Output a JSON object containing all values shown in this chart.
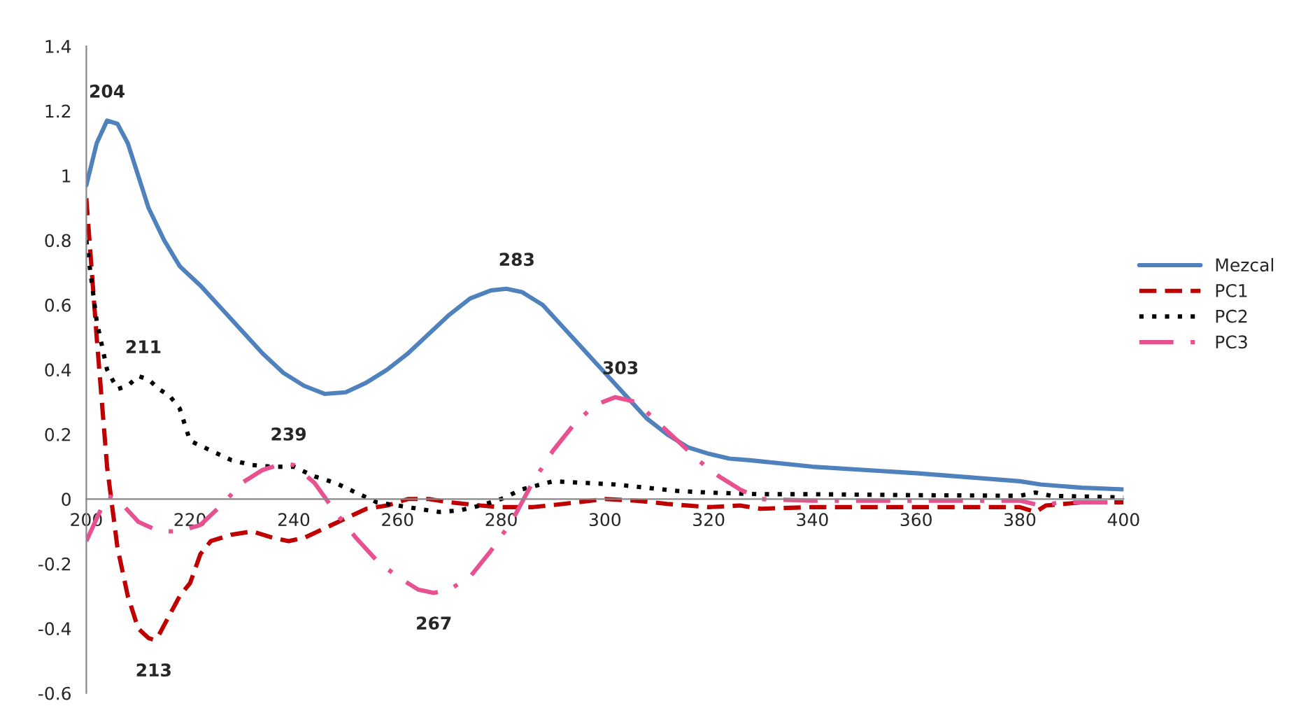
{
  "chart_data": {
    "type": "line",
    "xlim": [
      200,
      400
    ],
    "xticks": [
      200,
      220,
      240,
      260,
      280,
      300,
      320,
      340,
      360,
      380,
      400
    ],
    "ylim": [
      -0.6,
      1.4
    ],
    "yticks": [
      -0.6,
      -0.4,
      -0.2,
      0,
      0.2,
      0.4,
      0.6,
      0.8,
      1,
      1.2,
      1.4
    ],
    "grid": false,
    "legend": "right",
    "series": [
      {
        "name": "Mezcal",
        "color": "#4f81bd",
        "line_style": "solid",
        "x": [
          200,
          202,
          204,
          206,
          208,
          210,
          212,
          215,
          218,
          222,
          226,
          230,
          234,
          238,
          242,
          246,
          250,
          254,
          258,
          262,
          266,
          270,
          274,
          278,
          281,
          284,
          288,
          292,
          296,
          300,
          304,
          308,
          312,
          316,
          320,
          324,
          328,
          340,
          360,
          380,
          384,
          392,
          400
        ],
        "values": [
          0.97,
          1.1,
          1.17,
          1.16,
          1.1,
          1.0,
          0.9,
          0.8,
          0.72,
          0.66,
          0.59,
          0.52,
          0.45,
          0.39,
          0.35,
          0.325,
          0.33,
          0.36,
          0.4,
          0.45,
          0.51,
          0.57,
          0.62,
          0.645,
          0.65,
          0.64,
          0.6,
          0.53,
          0.46,
          0.39,
          0.32,
          0.25,
          0.2,
          0.16,
          0.14,
          0.125,
          0.12,
          0.1,
          0.08,
          0.055,
          0.045,
          0.035,
          0.03
        ]
      },
      {
        "name": "PC1",
        "color": "#c00000",
        "line_style": "dashed",
        "x": [
          200,
          202,
          204,
          206,
          208,
          210,
          212,
          213,
          214,
          216,
          218,
          220,
          222,
          224,
          228,
          232,
          236,
          239,
          242,
          246,
          250,
          254,
          258,
          262,
          266,
          270,
          276,
          280,
          286,
          292,
          300,
          306,
          312,
          320,
          326,
          330,
          340,
          360,
          380,
          383,
          385,
          392,
          400
        ],
        "values": [
          0.93,
          0.5,
          0.1,
          -0.15,
          -0.3,
          -0.4,
          -0.43,
          -0.435,
          -0.42,
          -0.36,
          -0.3,
          -0.26,
          -0.17,
          -0.13,
          -0.11,
          -0.1,
          -0.12,
          -0.13,
          -0.12,
          -0.09,
          -0.06,
          -0.03,
          -0.02,
          0.0,
          0.0,
          -0.01,
          -0.02,
          -0.025,
          -0.025,
          -0.015,
          0.0,
          -0.005,
          -0.015,
          -0.025,
          -0.02,
          -0.03,
          -0.025,
          -0.025,
          -0.025,
          -0.04,
          -0.02,
          -0.01,
          -0.01
        ]
      },
      {
        "name": "PC2",
        "color": "#000000",
        "line_style": "dotted",
        "x": [
          200,
          202,
          204,
          206,
          208,
          210,
          212,
          214,
          216,
          218,
          220,
          224,
          228,
          232,
          236,
          240,
          244,
          248,
          252,
          256,
          260,
          264,
          268,
          272,
          276,
          280,
          284,
          290,
          296,
          302,
          308,
          314,
          320,
          330,
          340,
          360,
          380,
          383,
          386,
          400
        ],
        "values": [
          0.8,
          0.55,
          0.4,
          0.34,
          0.35,
          0.38,
          0.37,
          0.34,
          0.32,
          0.28,
          0.18,
          0.15,
          0.12,
          0.105,
          0.1,
          0.1,
          0.07,
          0.05,
          0.02,
          -0.01,
          -0.02,
          -0.03,
          -0.04,
          -0.035,
          -0.02,
          0.0,
          0.03,
          0.055,
          0.05,
          0.045,
          0.035,
          0.025,
          0.02,
          0.015,
          0.015,
          0.012,
          0.01,
          0.02,
          0.01,
          0.005
        ]
      },
      {
        "name": "PC3",
        "color": "#e8508f",
        "line_style": "dashdot",
        "x": [
          200,
          202,
          204,
          206,
          210,
          214,
          218,
          222,
          226,
          230,
          234,
          238,
          240,
          244,
          248,
          252,
          256,
          260,
          264,
          267,
          270,
          274,
          278,
          282,
          286,
          290,
          294,
          298,
          302,
          306,
          310,
          314,
          318,
          322,
          326,
          330,
          340,
          360,
          380,
          384,
          388,
          400
        ],
        "values": [
          -0.13,
          -0.06,
          0.01,
          0.0,
          -0.07,
          -0.1,
          -0.1,
          -0.08,
          -0.02,
          0.05,
          0.09,
          0.11,
          0.105,
          0.05,
          -0.04,
          -0.12,
          -0.19,
          -0.24,
          -0.28,
          -0.29,
          -0.28,
          -0.24,
          -0.16,
          -0.07,
          0.05,
          0.15,
          0.23,
          0.29,
          0.315,
          0.3,
          0.24,
          0.18,
          0.12,
          0.07,
          0.03,
          0.0,
          -0.005,
          -0.005,
          -0.005,
          -0.02,
          -0.01,
          -0.01
        ]
      }
    ],
    "annotations": [
      {
        "text": "204",
        "x": 204,
        "y": 1.17
      },
      {
        "text": "211",
        "x": 211,
        "y": 0.38
      },
      {
        "text": "213",
        "x": 213,
        "y": -0.435
      },
      {
        "text": "239",
        "x": 239,
        "y": 0.11
      },
      {
        "text": "267",
        "x": 267,
        "y": -0.29
      },
      {
        "text": "283",
        "x": 283,
        "y": 0.65
      },
      {
        "text": "303",
        "x": 303,
        "y": 0.315
      }
    ]
  }
}
